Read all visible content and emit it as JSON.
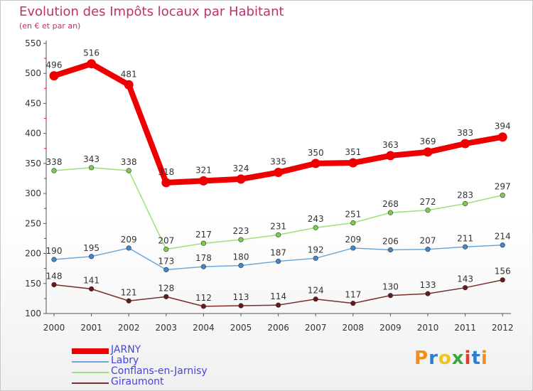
{
  "title": "Evolution des Impôts locaux par Habitant",
  "subtitle": "(en € et par an)",
  "logo": {
    "letters": [
      "P",
      "r",
      "o",
      "x",
      "i",
      "t",
      "i"
    ],
    "colors": [
      "#f28c1c",
      "#2a7fd4",
      "#f0c419",
      "#3aa83a",
      "#e23b2e",
      "#2a7fd4",
      "#f28c1c"
    ]
  },
  "chart_data": {
    "type": "line",
    "title": "Evolution des Impôts locaux par Habitant",
    "subtitle": "(en € et par an)",
    "xlabel": "",
    "ylabel": "",
    "categories": [
      "2000",
      "2001",
      "2002",
      "2003",
      "2004",
      "2005",
      "2006",
      "2007",
      "2008",
      "2009",
      "2010",
      "2011",
      "2012"
    ],
    "ylim": [
      100,
      550
    ],
    "yticks": [
      100,
      150,
      200,
      250,
      300,
      350,
      400,
      450,
      500,
      550
    ],
    "grid": false,
    "legend_position": "bottom-left",
    "series": [
      {
        "name": "JARNY",
        "color": "#ee0000",
        "marker": "#ee0000",
        "values": [
          496,
          516,
          481,
          318,
          321,
          324,
          335,
          350,
          351,
          363,
          369,
          383,
          394
        ]
      },
      {
        "name": "Labry",
        "color": "#6fa8d8",
        "marker": "#3f88d0",
        "values": [
          190,
          195,
          209,
          173,
          178,
          180,
          187,
          192,
          209,
          206,
          207,
          211,
          214
        ]
      },
      {
        "name": "Conflans-en-Jarnisy",
        "color": "#9be07b",
        "marker": "#7ccd4e",
        "values": [
          338,
          343,
          338,
          207,
          217,
          223,
          231,
          243,
          251,
          268,
          272,
          283,
          297
        ]
      },
      {
        "name": "Giraumont",
        "color": "#7a2e2e",
        "marker": "#6b1818",
        "values": [
          148,
          141,
          121,
          128,
          112,
          113,
          114,
          124,
          117,
          130,
          133,
          143,
          156
        ]
      }
    ]
  }
}
